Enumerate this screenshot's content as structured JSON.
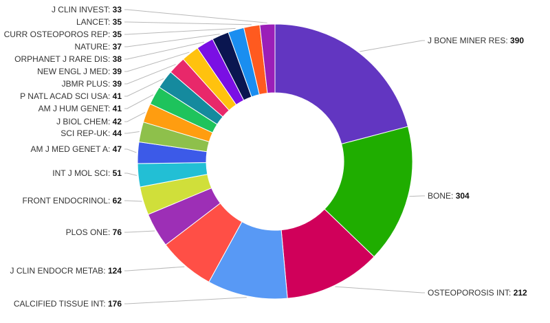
{
  "chart_data": {
    "type": "pie",
    "donut": true,
    "title": "",
    "label_format": "NAME: value",
    "slices": [
      {
        "name": "J BONE MINER RES",
        "value": 390,
        "color": "#6236c1"
      },
      {
        "name": "BONE",
        "value": 304,
        "color": "#1fad00"
      },
      {
        "name": "OSTEOPOROSIS INT",
        "value": 212,
        "color": "#d0005a"
      },
      {
        "name": "CALCIFIED TISSUE INT",
        "value": 176,
        "color": "#5899f5"
      },
      {
        "name": "J CLIN ENDOCR METAB",
        "value": 124,
        "color": "#ff4f46"
      },
      {
        "name": "PLOS ONE",
        "value": 76,
        "color": "#9d2fb6"
      },
      {
        "name": "FRONT ENDOCRINOL",
        "value": 62,
        "color": "#d0df3a"
      },
      {
        "name": "INT J MOL SCI",
        "value": 51,
        "color": "#22bfd5"
      },
      {
        "name": "AM J MED GENET A",
        "value": 47,
        "color": "#3c5ae8"
      },
      {
        "name": "SCI REP-UK",
        "value": 44,
        "color": "#8ec04b"
      },
      {
        "name": "J BIOL CHEM",
        "value": 42,
        "color": "#ff9d10"
      },
      {
        "name": "AM J HUM GENET",
        "value": 41,
        "color": "#1ec35c"
      },
      {
        "name": "P NATL ACAD SCI USA",
        "value": 41,
        "color": "#158a9e"
      },
      {
        "name": "JBMR PLUS",
        "value": 39,
        "color": "#e8286a"
      },
      {
        "name": "NEW ENGL J MED",
        "value": 39,
        "color": "#ffc20e"
      },
      {
        "name": "ORPHANET J RARE DIS",
        "value": 38,
        "color": "#7a0fe4"
      },
      {
        "name": "NATURE",
        "value": 37,
        "color": "#0a1650"
      },
      {
        "name": "CURR OSTEOPOROS REP",
        "value": 35,
        "color": "#1a8ef0"
      },
      {
        "name": "LANCET",
        "value": 35,
        "color": "#ff5a1f"
      },
      {
        "name": "J CLIN INVEST",
        "value": 33,
        "color": "#9b1fb8"
      }
    ]
  }
}
